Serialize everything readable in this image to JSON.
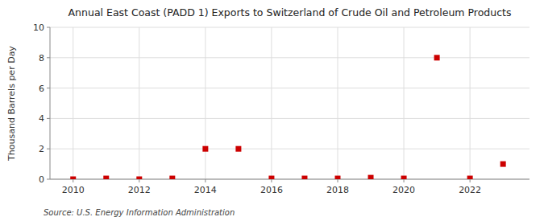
{
  "chart_data": {
    "type": "scatter",
    "title": "Annual East Coast (PADD 1) Exports to Switzerland of Crude Oil and Petroleum Products",
    "y_label": "Thousand Barrels per Day",
    "source": "Source: U.S. Energy Information Administration",
    "x": [
      2010,
      2011,
      2012,
      2013,
      2014,
      2015,
      2016,
      2017,
      2018,
      2019,
      2020,
      2021,
      2022,
      2023
    ],
    "values": [
      0,
      0.05,
      0,
      0.05,
      2,
      2,
      0.05,
      0.05,
      0.05,
      0.1,
      0.05,
      8,
      0.05,
      1
    ],
    "color": "#cc0000",
    "marker": "square",
    "xlim": [
      2009.3,
      2023.8
    ],
    "xticks": [
      2010,
      2012,
      2014,
      2016,
      2018,
      2020,
      2022
    ],
    "ylim": [
      0,
      10
    ],
    "yticks": [
      0,
      2,
      4,
      6,
      8,
      10
    ],
    "grid": true
  }
}
